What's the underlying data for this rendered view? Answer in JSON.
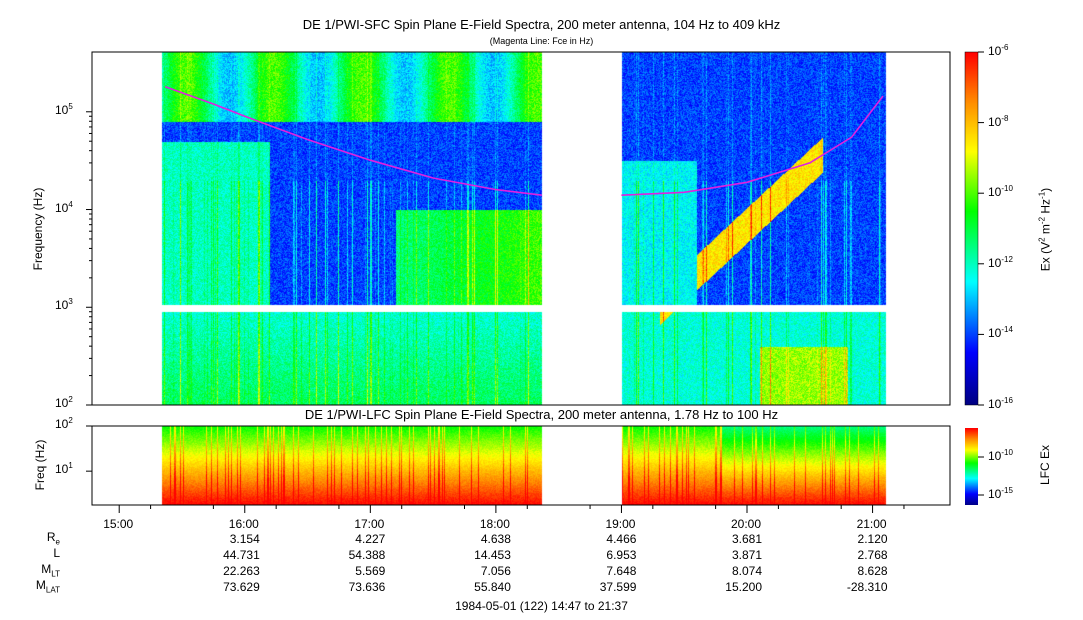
{
  "chart_data": [
    {
      "type": "heatmap",
      "title": "DE 1/PWI-SFC  Spin Plane E-Field Spectra, 200 meter antenna, 104 Hz to 409 kHz",
      "subtitle": "(Magenta Line: Fce in Hz)",
      "ylabel": "Frequency (Hz)",
      "yscale": "log",
      "ylim": [
        100,
        409000
      ],
      "yticks": [
        {
          "v": 100,
          "label": "10",
          "exp": "2"
        },
        {
          "v": 1000,
          "label": "10",
          "exp": "3"
        },
        {
          "v": 10000,
          "label": "10",
          "exp": "4"
        },
        {
          "v": 100000,
          "label": "10",
          "exp": "5"
        }
      ],
      "xlim": [
        "14:47",
        "21:37"
      ],
      "data_intervals": [
        [
          "15:20",
          "18:22"
        ],
        [
          "19:00",
          "21:06"
        ]
      ],
      "colorbar": {
        "label": "Ex (V2 m-2 Hz-1)",
        "scale": "log",
        "range": [
          1e-16,
          1e-06
        ],
        "ticks": [
          {
            "label": "10",
            "exp": "-6"
          },
          {
            "label": "10",
            "exp": "-8"
          },
          {
            "label": "10",
            "exp": "-10"
          },
          {
            "label": "10",
            "exp": "-12"
          },
          {
            "label": "10",
            "exp": "-14"
          },
          {
            "label": "10",
            "exp": "-16"
          }
        ]
      },
      "overlay_line": {
        "name": "Fce",
        "color": "#e020e0",
        "segments": [
          [
            [
              "15:22",
              180000
            ],
            [
              "15:45",
              120000
            ],
            [
              "16:00",
              90000
            ],
            [
              "16:30",
              52000
            ],
            [
              "17:00",
              32000
            ],
            [
              "17:30",
              21000
            ],
            [
              "18:00",
              16000
            ],
            [
              "18:22",
              14000
            ]
          ],
          [
            [
              "19:00",
              14000
            ],
            [
              "19:30",
              15000
            ],
            [
              "20:00",
              19000
            ],
            [
              "20:30",
              30000
            ],
            [
              "20:50",
              55000
            ],
            [
              "21:05",
              145000
            ]
          ]
        ]
      }
    },
    {
      "type": "heatmap",
      "title": "DE 1/PWI-LFC  Spin Plane E-Field Spectra, 200 meter antenna, 1.78 Hz to 100 Hz",
      "ylabel": "Freq (Hz)",
      "yscale": "log",
      "ylim": [
        1.78,
        100
      ],
      "yticks": [
        {
          "v": 10,
          "label": "10",
          "exp": "1"
        },
        {
          "v": 100,
          "label": "10",
          "exp": "2"
        }
      ],
      "colorbar": {
        "label": "LFC Ex",
        "scale": "log",
        "ticks": [
          {
            "label": "10",
            "exp": "-10"
          },
          {
            "label": "10",
            "exp": "-15"
          }
        ]
      }
    }
  ],
  "x_axis": {
    "ticks": [
      "15:00",
      "16:00",
      "17:00",
      "18:00",
      "19:00",
      "20:00",
      "21:00"
    ]
  },
  "ephemeris": {
    "rows": [
      {
        "label": "R",
        "sub": "e",
        "values": [
          "",
          "3.154",
          "4.227",
          "4.638",
          "4.466",
          "3.681",
          "2.120"
        ]
      },
      {
        "label": "L",
        "sub": "",
        "values": [
          "",
          "44.731",
          "54.388",
          "14.453",
          "6.953",
          "3.871",
          "2.768"
        ]
      },
      {
        "label": "M",
        "sub": "LT",
        "values": [
          "",
          "22.263",
          "5.569",
          "7.056",
          "7.648",
          "8.074",
          "8.628"
        ]
      },
      {
        "label": "M",
        "sub": "LAT",
        "values": [
          "",
          "73.629",
          "73.636",
          "55.840",
          "37.599",
          "15.200",
          "-28.310"
        ]
      }
    ]
  },
  "footer": "1984-05-01 (122) 14:47 to 21:37"
}
